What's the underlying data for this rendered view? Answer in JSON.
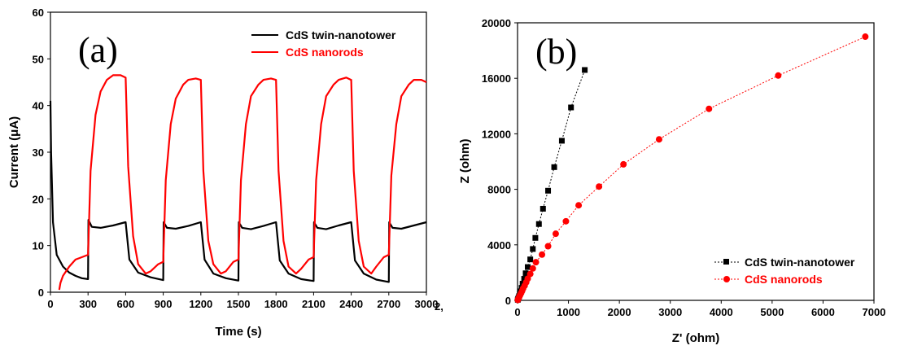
{
  "chart_data": [
    {
      "type": "line",
      "panel_label": "(a)",
      "xlabel": "Time (s)",
      "ylabel": "Current (μA)",
      "xlim": [
        0,
        3000
      ],
      "ylim": [
        0,
        60
      ],
      "x_ticks": [
        0,
        300,
        600,
        900,
        1200,
        1500,
        1800,
        2100,
        2400,
        2700,
        3000
      ],
      "y_ticks": [
        0,
        10,
        20,
        30,
        40,
        50,
        60
      ],
      "stray_text": "2,",
      "legend_position": "top-right",
      "series": [
        {
          "name": "CdS twin-nanotower",
          "color": "#000000",
          "x": [
            0,
            5,
            20,
            50,
            100,
            150,
            200,
            250,
            299,
            300,
            303,
            330,
            400,
            500,
            599,
            600,
            630,
            700,
            800,
            899,
            900,
            903,
            930,
            1000,
            1100,
            1199,
            1200,
            1230,
            1300,
            1400,
            1499,
            1500,
            1503,
            1530,
            1600,
            1700,
            1799,
            1800,
            1830,
            1900,
            2000,
            2099,
            2100,
            2103,
            2130,
            2200,
            2300,
            2399,
            2400,
            2430,
            2500,
            2600,
            2699,
            2700,
            2703,
            2730,
            2800,
            2900,
            3000
          ],
          "values": [
            41,
            30,
            15,
            8,
            5.5,
            4.2,
            3.5,
            3,
            2.8,
            2.8,
            15.5,
            14,
            13.8,
            14.3,
            15,
            15,
            7,
            4.2,
            3.2,
            2.6,
            2.6,
            15,
            13.8,
            13.6,
            14.2,
            15,
            15,
            7,
            4,
            3,
            2.5,
            2.5,
            15,
            13.8,
            13.5,
            14.2,
            15,
            15,
            6.8,
            4,
            2.8,
            2.4,
            2.4,
            15,
            13.8,
            13.5,
            14.3,
            15,
            15,
            6.8,
            4,
            2.7,
            2.2,
            2.2,
            15,
            13.8,
            13.6,
            14.3,
            15
          ]
        },
        {
          "name": "CdS nanorods",
          "color": "#ff0000",
          "x": [
            70,
            80,
            100,
            150,
            200,
            250,
            299,
            300,
            320,
            360,
            400,
            450,
            500,
            560,
            599,
            600,
            620,
            660,
            700,
            760,
            800,
            860,
            899,
            900,
            920,
            960,
            1000,
            1060,
            1100,
            1160,
            1199,
            1200,
            1220,
            1260,
            1300,
            1360,
            1400,
            1460,
            1499,
            1500,
            1520,
            1560,
            1600,
            1660,
            1700,
            1760,
            1799,
            1800,
            1820,
            1860,
            1900,
            1960,
            2000,
            2060,
            2099,
            2100,
            2120,
            2160,
            2200,
            2260,
            2300,
            2360,
            2399,
            2400,
            2420,
            2460,
            2500,
            2560,
            2600,
            2660,
            2699,
            2700,
            2720,
            2760,
            2800,
            2860,
            2900,
            2960,
            3000
          ],
          "values": [
            0.5,
            2,
            3.5,
            5.5,
            7,
            7.5,
            8,
            8,
            26,
            38,
            43,
            45.5,
            46.5,
            46.5,
            46,
            46,
            27,
            12,
            6,
            4,
            4.5,
            6,
            6.5,
            6.5,
            24,
            36,
            41.5,
            44.5,
            45.5,
            45.8,
            45.5,
            45.5,
            26,
            11,
            6,
            4,
            4.5,
            6.5,
            7,
            7,
            24,
            36,
            42,
            44.5,
            45.5,
            45.8,
            45.5,
            45.5,
            26,
            11,
            5.5,
            4,
            5,
            7,
            7.5,
            7.5,
            24,
            36,
            42,
            44.5,
            45.5,
            46,
            45.5,
            45.5,
            26,
            11,
            5.5,
            4,
            5.5,
            7.5,
            8,
            8,
            25,
            36,
            42,
            44.5,
            45.5,
            45.5,
            45
          ]
        }
      ]
    },
    {
      "type": "scatter",
      "panel_label": "(b)",
      "xlabel": "Z' (ohm)",
      "ylabel": "Z (ohm)",
      "xlim": [
        0,
        7000
      ],
      "ylim": [
        0,
        20000
      ],
      "x_ticks": [
        0,
        1000,
        2000,
        3000,
        4000,
        5000,
        6000,
        7000
      ],
      "y_ticks": [
        0,
        4000,
        8000,
        12000,
        16000,
        20000
      ],
      "legend_position": "bottom-right",
      "series": [
        {
          "name": "CdS twin-nanotower",
          "color": "#000000",
          "marker": "square",
          "x": [
            5,
            10,
            20,
            30,
            45,
            60,
            80,
            100,
            130,
            160,
            200,
            250,
            300,
            350,
            420,
            500,
            600,
            720,
            870,
            1050,
            1320
          ],
          "y": [
            40,
            100,
            180,
            300,
            450,
            650,
            900,
            1200,
            1550,
            1950,
            2400,
            2950,
            3700,
            4500,
            5500,
            6600,
            7900,
            9600,
            11500,
            13900,
            16600
          ]
        },
        {
          "name": "CdS nanorods",
          "color": "#ff0000",
          "marker": "circle",
          "x": [
            5,
            10,
            20,
            35,
            50,
            70,
            90,
            110,
            140,
            170,
            200,
            250,
            300,
            360,
            480,
            600,
            750,
            950,
            1200,
            1600,
            2080,
            2780,
            3760,
            5120,
            6830
          ],
          "y": [
            30,
            80,
            160,
            260,
            380,
            520,
            680,
            860,
            1060,
            1300,
            1560,
            1900,
            2300,
            2750,
            3300,
            3900,
            4800,
            5700,
            6850,
            8200,
            9800,
            11600,
            13800,
            16200,
            19000
          ]
        }
      ]
    }
  ]
}
